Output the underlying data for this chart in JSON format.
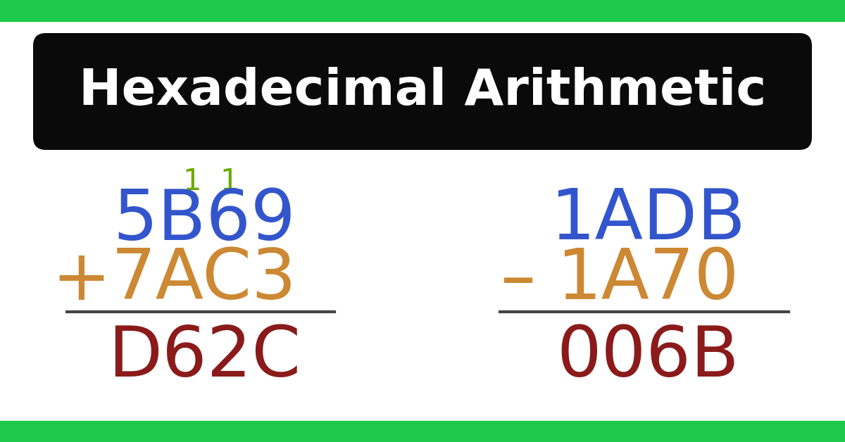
{
  "title": "Hexadecimal Arithmetic",
  "bg_color": "#ffffff",
  "header_bg": "#0a0a0a",
  "header_text_color": "#ffffff",
  "border_color": "#1dc84a",
  "carry_color": "#6aaa00",
  "blue_color": "#3355cc",
  "orange_color": "#cc8833",
  "dark_red_color": "#8b1a1a",
  "left_carry": "1  1",
  "left_top": "5B69",
  "left_op": "+",
  "left_mid": "7AC3",
  "left_bot": "D62C",
  "right_top": "1ADB",
  "right_op": "–",
  "right_mid": "1A70",
  "right_bot": "006B",
  "figw": 12.0,
  "figh": 6.28
}
